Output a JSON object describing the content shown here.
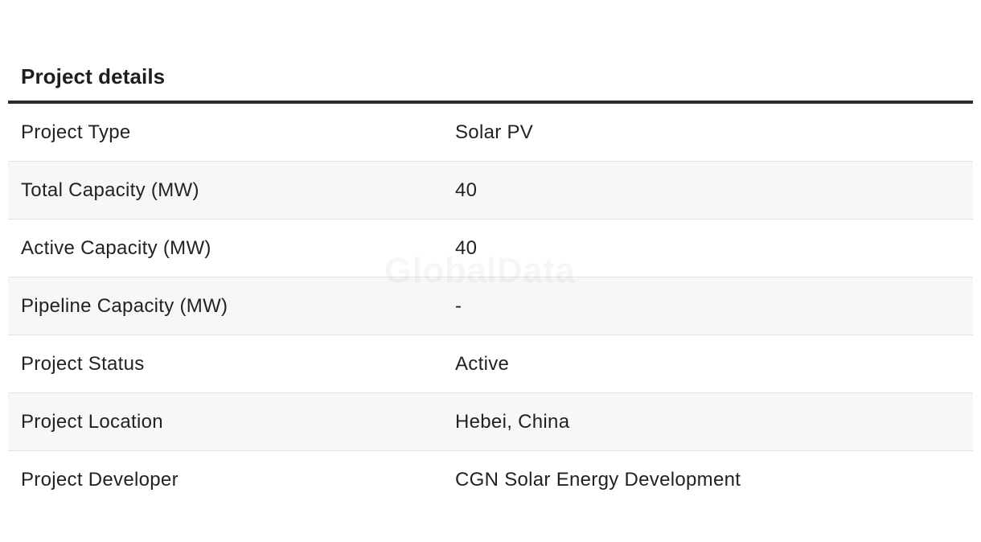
{
  "section": {
    "title": "Project details"
  },
  "rows": [
    {
      "label": "Project Type",
      "value": "Solar PV"
    },
    {
      "label": "Total Capacity (MW)",
      "value": "40"
    },
    {
      "label": "Active Capacity (MW)",
      "value": "40"
    },
    {
      "label": "Pipeline Capacity (MW)",
      "value": "-"
    },
    {
      "label": "Project Status",
      "value": "Active"
    },
    {
      "label": "Project Location",
      "value": "Hebei, China"
    },
    {
      "label": "Project Developer",
      "value": "CGN Solar Energy Development"
    }
  ],
  "watermark": "GlobalData",
  "colors": {
    "rule": "#2d2d2d",
    "row_shade": "#f7f7f7",
    "row_divider": "#e3e3e3",
    "text": "#222226"
  }
}
